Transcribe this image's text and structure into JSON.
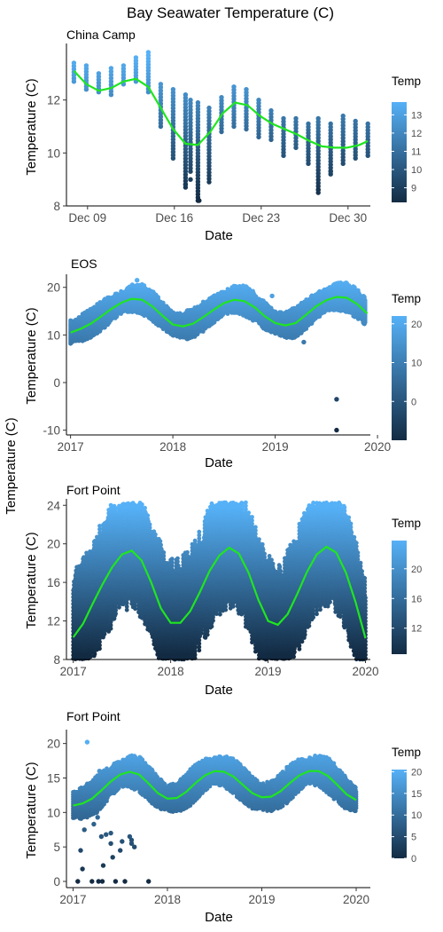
{
  "title": "Bay Seawater Temperature (C)",
  "shared_ylabel": "Temperature (C)",
  "chart_data": [
    {
      "type": "scatter",
      "subtitle": "China Camp",
      "xlabel": "Date",
      "ylabel": "Temperature (C)",
      "xlim": [
        7.3,
        31.8
      ],
      "ylim": [
        8,
        14
      ],
      "x_ticks": [
        {
          "v": 9,
          "label": "Dec 09"
        },
        {
          "v": 16,
          "label": "Dec 16"
        },
        {
          "v": 23,
          "label": "Dec 23"
        },
        {
          "v": 30,
          "label": "Dec 30"
        }
      ],
      "y_ticks": [
        8,
        10,
        12
      ],
      "legend": {
        "title": "Temp",
        "min": 8.2,
        "max": 13.7,
        "ticks": [
          9,
          10,
          11,
          12,
          13
        ],
        "low_color": "#132b43",
        "high_color": "#56b1f7",
        "placement": "right"
      },
      "columns": [
        [
          7.9,
          12.7,
          13.4
        ],
        [
          8.9,
          12.4,
          13.3
        ],
        [
          9.9,
          12.3,
          13.0
        ],
        [
          10.9,
          12.2,
          13.2
        ],
        [
          11.9,
          12.6,
          13.3
        ],
        [
          12.9,
          12.7,
          13.6
        ],
        [
          13.9,
          12.3,
          13.8
        ],
        [
          14.9,
          11.0,
          12.6
        ],
        [
          15.9,
          9.8,
          12.4
        ],
        [
          16.9,
          8.7,
          12.2
        ],
        [
          17.3,
          9.3,
          12.0
        ],
        [
          17.9,
          8.2,
          11.9
        ],
        [
          18.8,
          8.9,
          11.7
        ],
        [
          19.8,
          10.8,
          12.1
        ],
        [
          20.8,
          11.0,
          12.5
        ],
        [
          21.8,
          10.9,
          12.4
        ],
        [
          22.8,
          10.6,
          12.0
        ],
        [
          23.8,
          10.5,
          11.6
        ],
        [
          24.8,
          9.9,
          11.3
        ],
        [
          25.8,
          10.2,
          11.3
        ],
        [
          26.8,
          9.6,
          11.1
        ],
        [
          27.6,
          8.5,
          11.3
        ],
        [
          28.6,
          9.2,
          11.1
        ],
        [
          29.6,
          9.6,
          11.4
        ],
        [
          30.6,
          9.8,
          11.2
        ],
        [
          31.6,
          9.9,
          11.1
        ]
      ],
      "extra_points": [
        [
          16.9,
          8.8
        ],
        [
          18.0,
          8.2
        ],
        [
          27.6,
          8.6
        ],
        [
          17.3,
          9.0
        ],
        [
          28.6,
          9.3
        ]
      ],
      "trend": {
        "x": [
          7.9,
          8.9,
          9.9,
          10.9,
          11.9,
          12.9,
          13.9,
          14.9,
          15.9,
          16.9,
          17.9,
          18.9,
          19.9,
          20.9,
          21.9,
          22.9,
          23.9,
          24.9,
          25.9,
          26.9,
          27.9,
          28.9,
          29.9,
          30.9,
          31.6
        ],
        "y": [
          13.1,
          12.6,
          12.35,
          12.45,
          12.7,
          12.8,
          12.5,
          11.7,
          10.9,
          10.35,
          10.3,
          10.8,
          11.5,
          11.9,
          11.8,
          11.4,
          11.1,
          10.9,
          10.7,
          10.45,
          10.25,
          10.2,
          10.2,
          10.3,
          10.45
        ]
      },
      "series": [
        {
          "name": "Temp"
        }
      ]
    },
    {
      "type": "scatter",
      "subtitle": "EOS",
      "xlabel": "Date",
      "ylabel": "Temperature (C)",
      "xlim": [
        2016.96,
        2019.93
      ],
      "ylim": [
        -11,
        22
      ],
      "x_ticks": [
        {
          "v": 2017,
          "label": "2017"
        },
        {
          "v": 2018,
          "label": "2018"
        },
        {
          "v": 2019,
          "label": "2019"
        },
        {
          "v": 2020,
          "label": "2020"
        }
      ],
      "y_ticks": [
        -10,
        0,
        10,
        20
      ],
      "legend": {
        "title": "Temp",
        "min": -10,
        "max": 22,
        "ticks": [
          0,
          10,
          20
        ],
        "low_color": "#132b43",
        "high_color": "#56b1f7",
        "placement": "right"
      },
      "amp": {
        "base": 14.8,
        "amp": 3.2,
        "peak": 0.62,
        "offset": 0.75,
        "width": 3.0
      },
      "trend": {
        "x": [
          2017.0,
          2017.1,
          2017.2,
          2017.3,
          2017.4,
          2017.5,
          2017.6,
          2017.7,
          2017.8,
          2017.9,
          2018.0,
          2018.1,
          2018.2,
          2018.3,
          2018.4,
          2018.5,
          2018.6,
          2018.7,
          2018.8,
          2018.9,
          2019.0,
          2019.1,
          2019.2,
          2019.3,
          2019.4,
          2019.5,
          2019.6,
          2019.7,
          2019.8,
          2019.9
        ],
        "y": [
          10.5,
          11.3,
          12.4,
          13.9,
          15.5,
          16.8,
          17.6,
          17.4,
          16.0,
          14.0,
          12.2,
          11.8,
          12.4,
          13.8,
          15.3,
          16.7,
          17.4,
          17.1,
          15.8,
          13.9,
          12.5,
          12.0,
          12.5,
          14.2,
          16.0,
          17.3,
          18.0,
          17.8,
          16.5,
          14.5
        ]
      },
      "outliers": [
        [
          2019.2,
          10.0
        ],
        [
          2019.28,
          8.5
        ],
        [
          2019.6,
          -3.5
        ],
        [
          2019.6,
          -10.0
        ],
        [
          2018.97,
          18.2
        ],
        [
          2017.6,
          19.2
        ],
        [
          2017.65,
          21.5
        ]
      ],
      "series": [
        {
          "name": "Temp"
        }
      ]
    },
    {
      "type": "scatter",
      "subtitle": "Fort Point",
      "xlabel": "Date",
      "ylabel": "Temperature (C)",
      "xlim": [
        2016.93,
        2020.05
      ],
      "ylim": [
        8,
        24.3
      ],
      "x_ticks": [
        {
          "v": 2017,
          "label": "2017"
        },
        {
          "v": 2018,
          "label": "2018"
        },
        {
          "v": 2019,
          "label": "2019"
        },
        {
          "v": 2020,
          "label": "2020"
        }
      ],
      "y_ticks": [
        8,
        12,
        16,
        20,
        24
      ],
      "legend": {
        "title": "Temp",
        "min": 8.5,
        "max": 23.8,
        "ticks": [
          12,
          16,
          20
        ],
        "low_color": "#132b43",
        "high_color": "#56b1f7",
        "placement": "right"
      },
      "amp": {
        "base": 15.5,
        "amp": 3.9,
        "peak": 0.6,
        "offset": 0.0,
        "width": 8.0
      },
      "trend": {
        "x": [
          2017.0,
          2017.1,
          2017.2,
          2017.3,
          2017.4,
          2017.5,
          2017.6,
          2017.7,
          2017.8,
          2017.9,
          2018.0,
          2018.1,
          2018.2,
          2018.3,
          2018.4,
          2018.5,
          2018.6,
          2018.7,
          2018.8,
          2018.9,
          2019.0,
          2019.1,
          2019.2,
          2019.3,
          2019.4,
          2019.5,
          2019.6,
          2019.7,
          2019.8,
          2019.9,
          2020.0
        ],
        "y": [
          10.3,
          11.7,
          13.8,
          15.8,
          17.6,
          18.9,
          19.3,
          18.3,
          16.0,
          13.3,
          11.8,
          11.8,
          13.0,
          15.0,
          17.2,
          18.8,
          19.6,
          19.0,
          17.0,
          14.2,
          12.0,
          11.6,
          12.7,
          14.8,
          17.1,
          18.9,
          19.7,
          19.1,
          17.0,
          13.9,
          10.2
        ]
      },
      "series": [
        {
          "name": "Temp"
        }
      ]
    },
    {
      "type": "scatter",
      "subtitle": "Fort Point",
      "xlabel": "Date",
      "ylabel": "Temperature (C)",
      "xlim": [
        2016.93,
        2020.15
      ],
      "ylim": [
        -0.9,
        21.5
      ],
      "x_ticks": [
        {
          "v": 2017,
          "label": "2017"
        },
        {
          "v": 2018,
          "label": "2018"
        },
        {
          "v": 2019,
          "label": "2019"
        },
        {
          "v": 2020,
          "label": "2020"
        }
      ],
      "y_ticks": [
        0,
        5,
        10,
        15,
        20
      ],
      "legend": {
        "title": "Temp",
        "min": 0,
        "max": 20.5,
        "ticks": [
          0,
          5,
          10,
          15,
          20
        ],
        "low_color": "#132b43",
        "high_color": "#56b1f7",
        "placement": "right"
      },
      "amp": {
        "base": 13.8,
        "amp": 2.0,
        "peak": 0.62,
        "offset": 0.75,
        "width": 2.3
      },
      "trend": {
        "x": [
          2017.0,
          2017.1,
          2017.2,
          2017.3,
          2017.4,
          2017.5,
          2017.6,
          2017.7,
          2017.8,
          2017.9,
          2018.0,
          2018.1,
          2018.2,
          2018.3,
          2018.4,
          2018.5,
          2018.6,
          2018.7,
          2018.8,
          2018.9,
          2019.0,
          2019.1,
          2019.2,
          2019.3,
          2019.4,
          2019.5,
          2019.6,
          2019.7,
          2019.8,
          2019.9,
          2020.0
        ],
        "y": [
          11.0,
          11.3,
          12.0,
          13.2,
          14.5,
          15.5,
          15.9,
          15.5,
          14.2,
          12.8,
          12.0,
          12.1,
          13.0,
          14.3,
          15.4,
          16.0,
          15.9,
          15.2,
          14.0,
          12.8,
          12.2,
          12.3,
          13.1,
          14.3,
          15.4,
          16.0,
          16.0,
          15.3,
          14.0,
          12.6,
          11.8
        ]
      },
      "outliers": [
        [
          2017.05,
          0.0
        ],
        [
          2017.1,
          1.8
        ],
        [
          2017.08,
          4.5
        ],
        [
          2017.12,
          7.5
        ],
        [
          2017.15,
          9.5
        ],
        [
          2017.2,
          0.0
        ],
        [
          2017.2,
          11.0
        ],
        [
          2017.22,
          8.3
        ],
        [
          2017.25,
          10.0
        ],
        [
          2017.26,
          9.3
        ],
        [
          2017.27,
          0.0
        ],
        [
          2017.3,
          6.5
        ],
        [
          2017.31,
          0.0
        ],
        [
          2017.32,
          2.3
        ],
        [
          2017.35,
          6.8
        ],
        [
          2017.4,
          5.5
        ],
        [
          2017.4,
          7.0
        ],
        [
          2017.42,
          3.5
        ],
        [
          2017.45,
          0.0
        ],
        [
          2017.5,
          4.5
        ],
        [
          2017.52,
          5.8
        ],
        [
          2017.55,
          0.0
        ],
        [
          2017.6,
          6.5
        ],
        [
          2017.62,
          6.0
        ],
        [
          2017.65,
          5.0
        ],
        [
          2017.62,
          5.5
        ],
        [
          2017.8,
          0.0
        ],
        [
          2017.15,
          20.2
        ],
        [
          2017.28,
          16.0
        ],
        [
          2017.3,
          12.0
        ]
      ],
      "series": [
        {
          "name": "Temp"
        }
      ]
    }
  ]
}
